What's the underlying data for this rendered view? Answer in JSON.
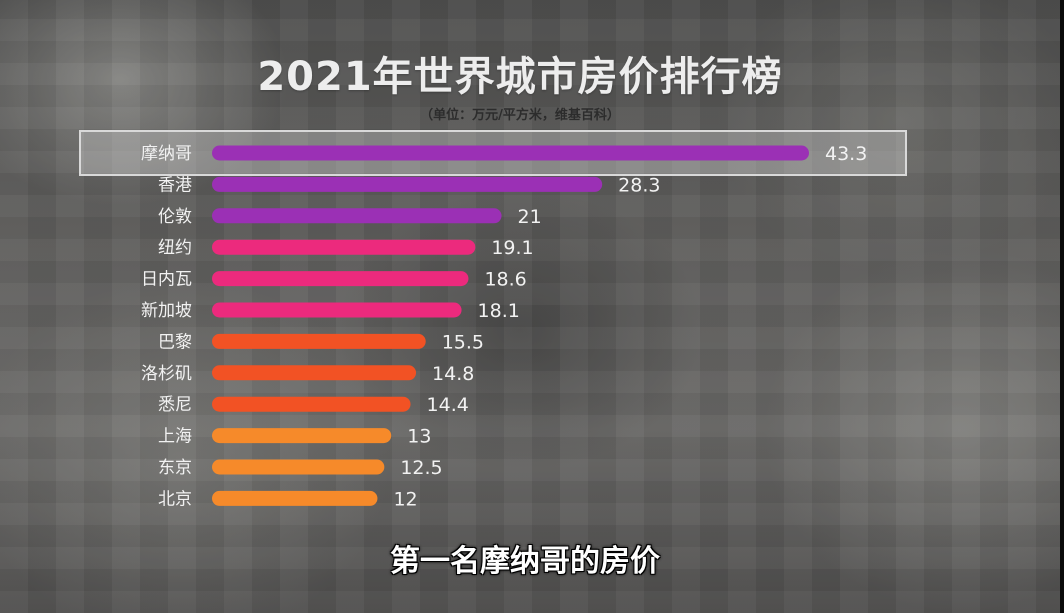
{
  "chart_data": {
    "type": "bar",
    "orientation": "horizontal",
    "title": "2021年世界城市房价排行榜",
    "subtitle": "（单位：万元/平方米，维基百科）",
    "categories": [
      "摩纳哥",
      "香港",
      "伦敦",
      "纽约",
      "日内瓦",
      "新加坡",
      "巴黎",
      "洛杉矶",
      "悉尼",
      "上海",
      "东京",
      "北京"
    ],
    "values": [
      43.3,
      28.3,
      21,
      19.1,
      18.6,
      18.1,
      15.5,
      14.8,
      14.4,
      13,
      12.5,
      12
    ],
    "value_labels": [
      "43.3",
      "28.3",
      "21",
      "19.1",
      "18.6",
      "18.1",
      "15.5",
      "14.8",
      "14.4",
      "13",
      "12.5",
      "12"
    ],
    "bar_colors": [
      "#9b30b5",
      "#9b30b5",
      "#9b30b5",
      "#ec2a7d",
      "#ec2a7d",
      "#ec2a7d",
      "#f25224",
      "#f25224",
      "#f25224",
      "#f68a2a",
      "#f68a2a",
      "#f68a2a"
    ],
    "highlighted_category": "摩纳哥"
  },
  "caption": "第一名摩纳哥的房价"
}
